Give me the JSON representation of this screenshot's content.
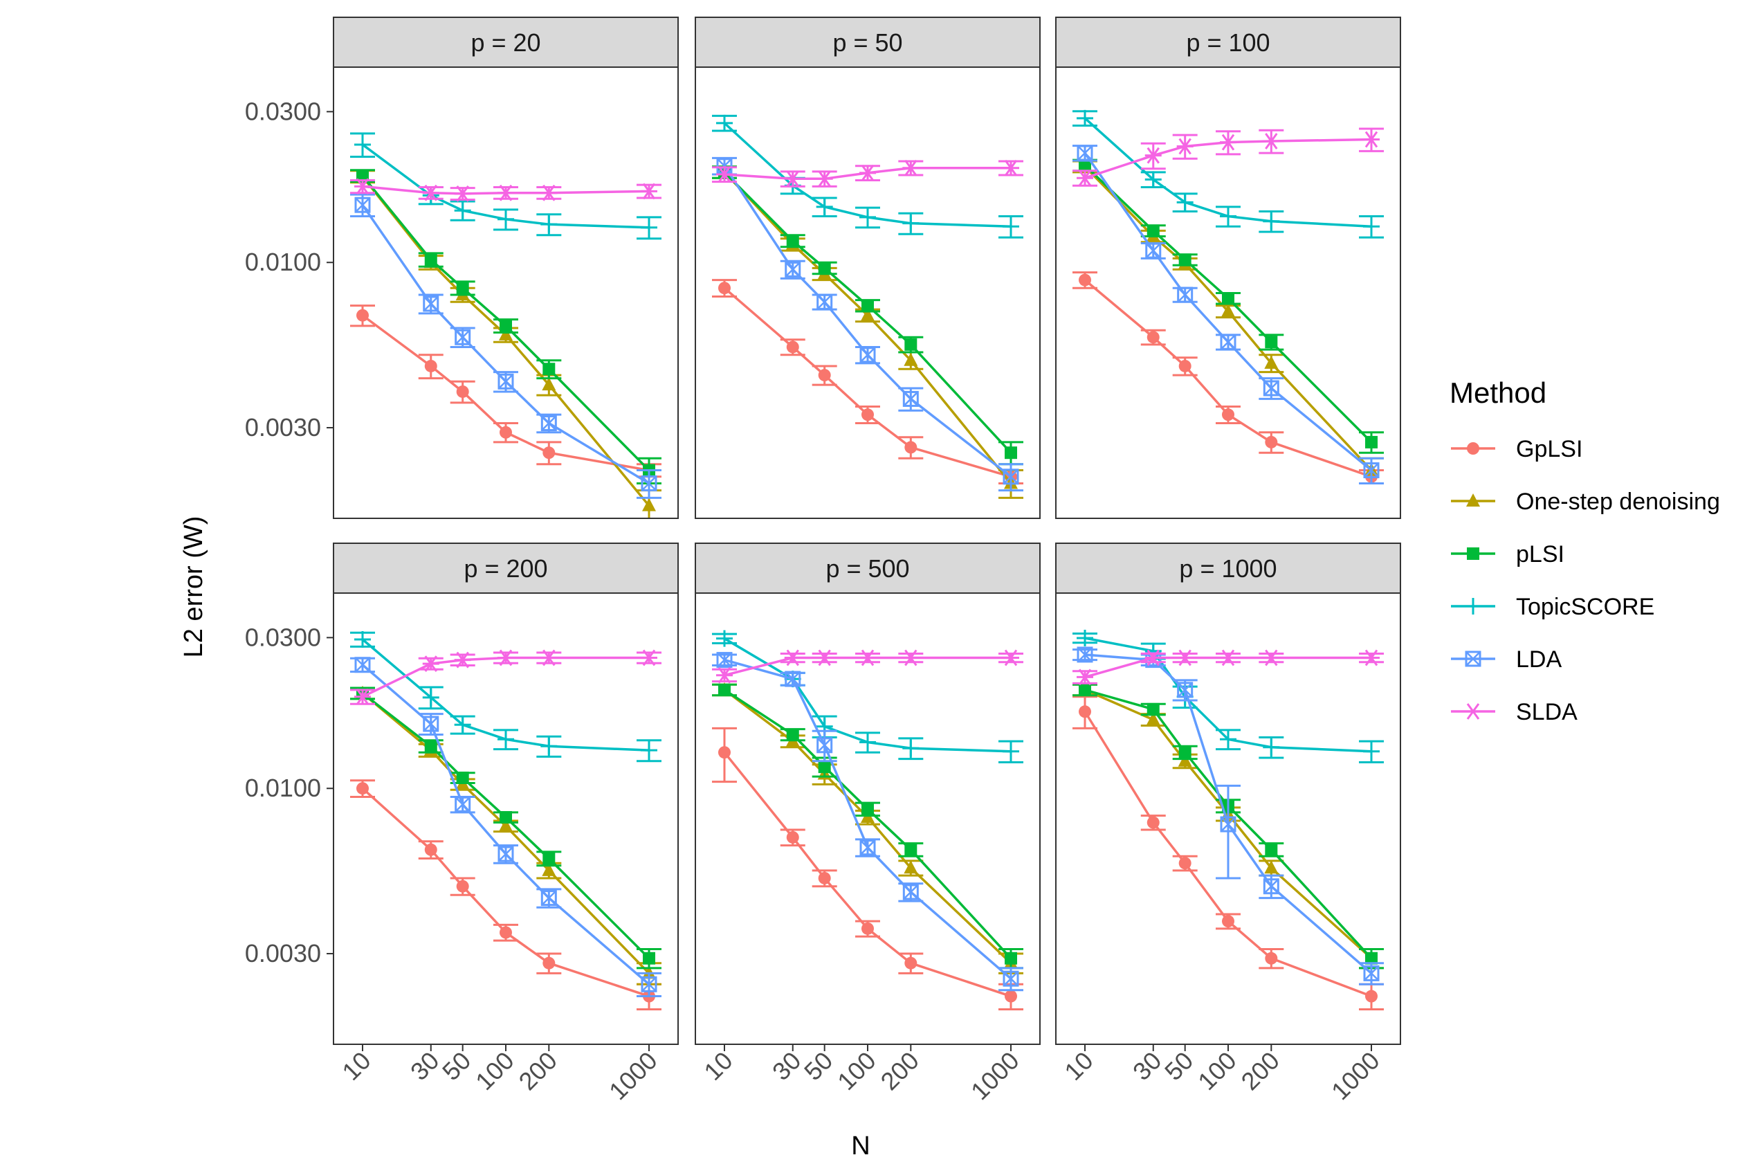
{
  "chart_data": {
    "type": "line",
    "facet_by": "p",
    "xlabel": "N",
    "ylabel": "L2 error (W)",
    "x_scale": "log",
    "y_scale": "log",
    "x": [
      10,
      30,
      50,
      100,
      200,
      1000
    ],
    "x_tick_labels": [
      "10",
      "30",
      "50",
      "100",
      "200",
      "1000"
    ],
    "y_ticks": [
      0.003,
      0.01,
      0.03
    ],
    "y_tick_labels": [
      "0.0030",
      "0.0100",
      "0.0300"
    ],
    "ylim": [
      0.00155,
      0.0415
    ],
    "legend_title": "Method",
    "legend_position": "right",
    "methods": [
      {
        "name": "GpLSI",
        "color": "#F8766D",
        "shape": "circle"
      },
      {
        "name": "One-step denoising",
        "color": "#B79F00",
        "shape": "triangle"
      },
      {
        "name": "pLSI",
        "color": "#00BA38",
        "shape": "square"
      },
      {
        "name": "TopicSCORE",
        "color": "#00BFC4",
        "shape": "plus"
      },
      {
        "name": "LDA",
        "color": "#619CFF",
        "shape": "boxed-x"
      },
      {
        "name": "SLDA",
        "color": "#F564E3",
        "shape": "asterisk"
      }
    ],
    "panels": [
      {
        "title": "p = 20",
        "series": [
          {
            "name": "GpLSI",
            "values": [
              0.0068,
              0.0047,
              0.0039,
              0.0029,
              0.0025,
              0.0022
            ],
            "errors": [
              0.0005,
              0.0004,
              0.0003,
              0.0002,
              0.0002,
              0.0001
            ]
          },
          {
            "name": "One-step denoising",
            "values": [
              0.0187,
              0.01,
              0.0079,
              0.0059,
              0.0041,
              0.0017
            ],
            "errors": [
              0.0008,
              0.0005,
              0.0004,
              0.0003,
              0.0003,
              0.0002
            ]
          },
          {
            "name": "pLSI",
            "values": [
              0.0188,
              0.0102,
              0.0083,
              0.0063,
              0.0046,
              0.0022
            ],
            "errors": [
              0.0008,
              0.0005,
              0.0004,
              0.0003,
              0.0003,
              0.0002
            ]
          },
          {
            "name": "TopicSCORE",
            "values": [
              0.0236,
              0.0163,
              0.0146,
              0.0137,
              0.0132,
              0.0129
            ],
            "errors": [
              0.002,
              0.001,
              0.001,
              0.001,
              0.001,
              0.001
            ]
          },
          {
            "name": "LDA",
            "values": [
              0.0152,
              0.0074,
              0.0058,
              0.0042,
              0.0031,
              0.002
            ],
            "errors": [
              0.0012,
              0.0005,
              0.0004,
              0.0003,
              0.0002,
              0.0002
            ]
          },
          {
            "name": "SLDA",
            "values": [
              0.0174,
              0.0166,
              0.0165,
              0.0166,
              0.0166,
              0.0168
            ],
            "errors": [
              0.0008,
              0.0007,
              0.0007,
              0.0007,
              0.0007,
              0.0008
            ]
          }
        ]
      },
      {
        "title": "p = 50",
        "series": [
          {
            "name": "GpLSI",
            "values": [
              0.0083,
              0.0054,
              0.0044,
              0.0033,
              0.0026,
              0.0021
            ],
            "errors": [
              0.0005,
              0.0003,
              0.0003,
              0.0002,
              0.0002,
              0.0001
            ]
          },
          {
            "name": "One-step denoising",
            "values": [
              0.0193,
              0.0114,
              0.0092,
              0.0068,
              0.0049,
              0.002
            ],
            "errors": [
              0.0008,
              0.0005,
              0.0004,
              0.0003,
              0.0003,
              0.0002
            ]
          },
          {
            "name": "pLSI",
            "values": [
              0.0193,
              0.0117,
              0.0096,
              0.0073,
              0.0055,
              0.0025
            ],
            "errors": [
              0.0008,
              0.0005,
              0.0004,
              0.0003,
              0.0003,
              0.0002
            ]
          },
          {
            "name": "TopicSCORE",
            "values": [
              0.0276,
              0.0175,
              0.015,
              0.0139,
              0.0133,
              0.013
            ],
            "errors": [
              0.0015,
              0.001,
              0.001,
              0.001,
              0.001,
              0.001
            ]
          },
          {
            "name": "LDA",
            "values": [
              0.0202,
              0.0095,
              0.0075,
              0.0051,
              0.0037,
              0.0021
            ],
            "errors": [
              0.0012,
              0.0006,
              0.0004,
              0.0003,
              0.0003,
              0.0002
            ]
          },
          {
            "name": "SLDA",
            "values": [
              0.019,
              0.0184,
              0.0184,
              0.0192,
              0.0199,
              0.0199
            ],
            "errors": [
              0.001,
              0.001,
              0.001,
              0.001,
              0.001,
              0.001
            ]
          }
        ]
      },
      {
        "title": "p = 100",
        "series": [
          {
            "name": "GpLSI",
            "values": [
              0.0088,
              0.0058,
              0.0047,
              0.0033,
              0.0027,
              0.0021
            ],
            "errors": [
              0.0005,
              0.0003,
              0.0003,
              0.0002,
              0.0002,
              0.0001
            ]
          },
          {
            "name": "One-step denoising",
            "values": [
              0.0201,
              0.0121,
              0.0099,
              0.007,
              0.0048,
              0.0022
            ],
            "errors": [
              0.0008,
              0.0005,
              0.0004,
              0.0003,
              0.0003,
              0.0002
            ]
          },
          {
            "name": "pLSI",
            "values": [
              0.0203,
              0.0126,
              0.0102,
              0.0077,
              0.0056,
              0.0027
            ],
            "errors": [
              0.0008,
              0.0005,
              0.0004,
              0.0003,
              0.0003,
              0.0002
            ]
          },
          {
            "name": "TopicSCORE",
            "values": [
              0.0286,
              0.0183,
              0.0155,
              0.014,
              0.0135,
              0.013
            ],
            "errors": [
              0.0015,
              0.001,
              0.001,
              0.001,
              0.001,
              0.001
            ]
          },
          {
            "name": "LDA",
            "values": [
              0.0222,
              0.0109,
              0.0079,
              0.0056,
              0.004,
              0.0022
            ],
            "errors": [
              0.0012,
              0.0006,
              0.0004,
              0.0003,
              0.0003,
              0.0002
            ]
          },
          {
            "name": "SLDA",
            "values": [
              0.0185,
              0.0218,
              0.0233,
              0.024,
              0.0242,
              0.0245
            ],
            "errors": [
              0.001,
              0.002,
              0.002,
              0.002,
              0.002,
              0.002
            ]
          }
        ]
      },
      {
        "title": "p = 200",
        "series": [
          {
            "name": "GpLSI",
            "values": [
              0.01,
              0.0064,
              0.0049,
              0.0035,
              0.0028,
              0.0022
            ],
            "errors": [
              0.0006,
              0.0004,
              0.0003,
              0.0002,
              0.0002,
              0.0002
            ]
          },
          {
            "name": "One-step denoising",
            "values": [
              0.02,
              0.0132,
              0.0103,
              0.0076,
              0.0055,
              0.0026
            ],
            "errors": [
              0.0008,
              0.0006,
              0.0004,
              0.0003,
              0.0003,
              0.0002
            ]
          },
          {
            "name": "pLSI",
            "values": [
              0.02,
              0.0136,
              0.0108,
              0.0081,
              0.006,
              0.0029
            ],
            "errors": [
              0.0008,
              0.0006,
              0.0004,
              0.0003,
              0.0003,
              0.0002
            ]
          },
          {
            "name": "TopicSCORE",
            "values": [
              0.0296,
              0.0194,
              0.0159,
              0.0143,
              0.0136,
              0.0132
            ],
            "errors": [
              0.0015,
              0.0015,
              0.001,
              0.001,
              0.001,
              0.001
            ]
          },
          {
            "name": "LDA",
            "values": [
              0.0246,
              0.016,
              0.0089,
              0.0062,
              0.0045,
              0.0024
            ],
            "errors": [
              0.0012,
              0.0012,
              0.0005,
              0.0004,
              0.0003,
              0.0002
            ]
          },
          {
            "name": "SLDA",
            "values": [
              0.0195,
              0.0248,
              0.0255,
              0.0259,
              0.0259,
              0.0259
            ],
            "errors": [
              0.001,
              0.001,
              0.001,
              0.001,
              0.001,
              0.001
            ]
          }
        ]
      },
      {
        "title": "p = 500",
        "series": [
          {
            "name": "GpLSI",
            "values": [
              0.013,
              0.007,
              0.0052,
              0.0036,
              0.0028,
              0.0022
            ],
            "errors": [
              0.0025,
              0.0004,
              0.0003,
              0.0002,
              0.0002,
              0.0002
            ]
          },
          {
            "name": "One-step denoising",
            "values": [
              0.0205,
              0.0141,
              0.0111,
              0.0081,
              0.0056,
              0.0028
            ],
            "errors": [
              0.0008,
              0.0006,
              0.0008,
              0.0004,
              0.0003,
              0.0002
            ]
          },
          {
            "name": "pLSI",
            "values": [
              0.0205,
              0.0148,
              0.0117,
              0.0086,
              0.0064,
              0.0029
            ],
            "errors": [
              0.0008,
              0.0006,
              0.0008,
              0.0004,
              0.0003,
              0.0002
            ]
          },
          {
            "name": "TopicSCORE",
            "values": [
              0.0298,
              0.0222,
              0.0157,
              0.014,
              0.0134,
              0.0131
            ],
            "errors": [
              0.001,
              0.001,
              0.0012,
              0.001,
              0.001,
              0.001
            ]
          },
          {
            "name": "LDA",
            "values": [
              0.0255,
              0.0222,
              0.0137,
              0.0065,
              0.0047,
              0.0025
            ],
            "errors": [
              0.001,
              0.001,
              0.0015,
              0.0004,
              0.0003,
              0.0002
            ]
          },
          {
            "name": "SLDA",
            "values": [
              0.0228,
              0.0259,
              0.0259,
              0.0259,
              0.0259,
              0.0259
            ],
            "errors": [
              0.001,
              0.0008,
              0.0008,
              0.0008,
              0.0008,
              0.0008
            ]
          }
        ]
      },
      {
        "title": "p = 1000",
        "series": [
          {
            "name": "GpLSI",
            "values": [
              0.0175,
              0.0078,
              0.0058,
              0.0038,
              0.0029,
              0.0022
            ],
            "errors": [
              0.002,
              0.0004,
              0.0003,
              0.0002,
              0.0002,
              0.0002
            ]
          },
          {
            "name": "One-step denoising",
            "values": [
              0.0205,
              0.0165,
              0.0122,
              0.0083,
              0.0056,
              0.0029
            ],
            "errors": [
              0.0008,
              0.0007,
              0.0006,
              0.0004,
              0.0003,
              0.0002
            ]
          },
          {
            "name": "pLSI",
            "values": [
              0.0205,
              0.0178,
              0.013,
              0.0088,
              0.0064,
              0.0029
            ],
            "errors": [
              0.0008,
              0.0007,
              0.0006,
              0.0004,
              0.0003,
              0.0002
            ]
          },
          {
            "name": "TopicSCORE",
            "values": [
              0.0299,
              0.0272,
              0.0195,
              0.0143,
              0.0135,
              0.0131
            ],
            "errors": [
              0.001,
              0.0015,
              0.0015,
              0.001,
              0.001,
              0.001
            ]
          },
          {
            "name": "LDA",
            "values": [
              0.0265,
              0.0255,
              0.0205,
              0.0077,
              0.0049,
              0.0026
            ],
            "errors": [
              0.001,
              0.001,
              0.0015,
              0.0025,
              0.0004,
              0.0002
            ]
          },
          {
            "name": "SLDA",
            "values": [
              0.0225,
              0.0259,
              0.0259,
              0.0259,
              0.0259,
              0.0259
            ],
            "errors": [
              0.001,
              0.0008,
              0.0008,
              0.0008,
              0.0008,
              0.0008
            ]
          }
        ]
      }
    ]
  }
}
